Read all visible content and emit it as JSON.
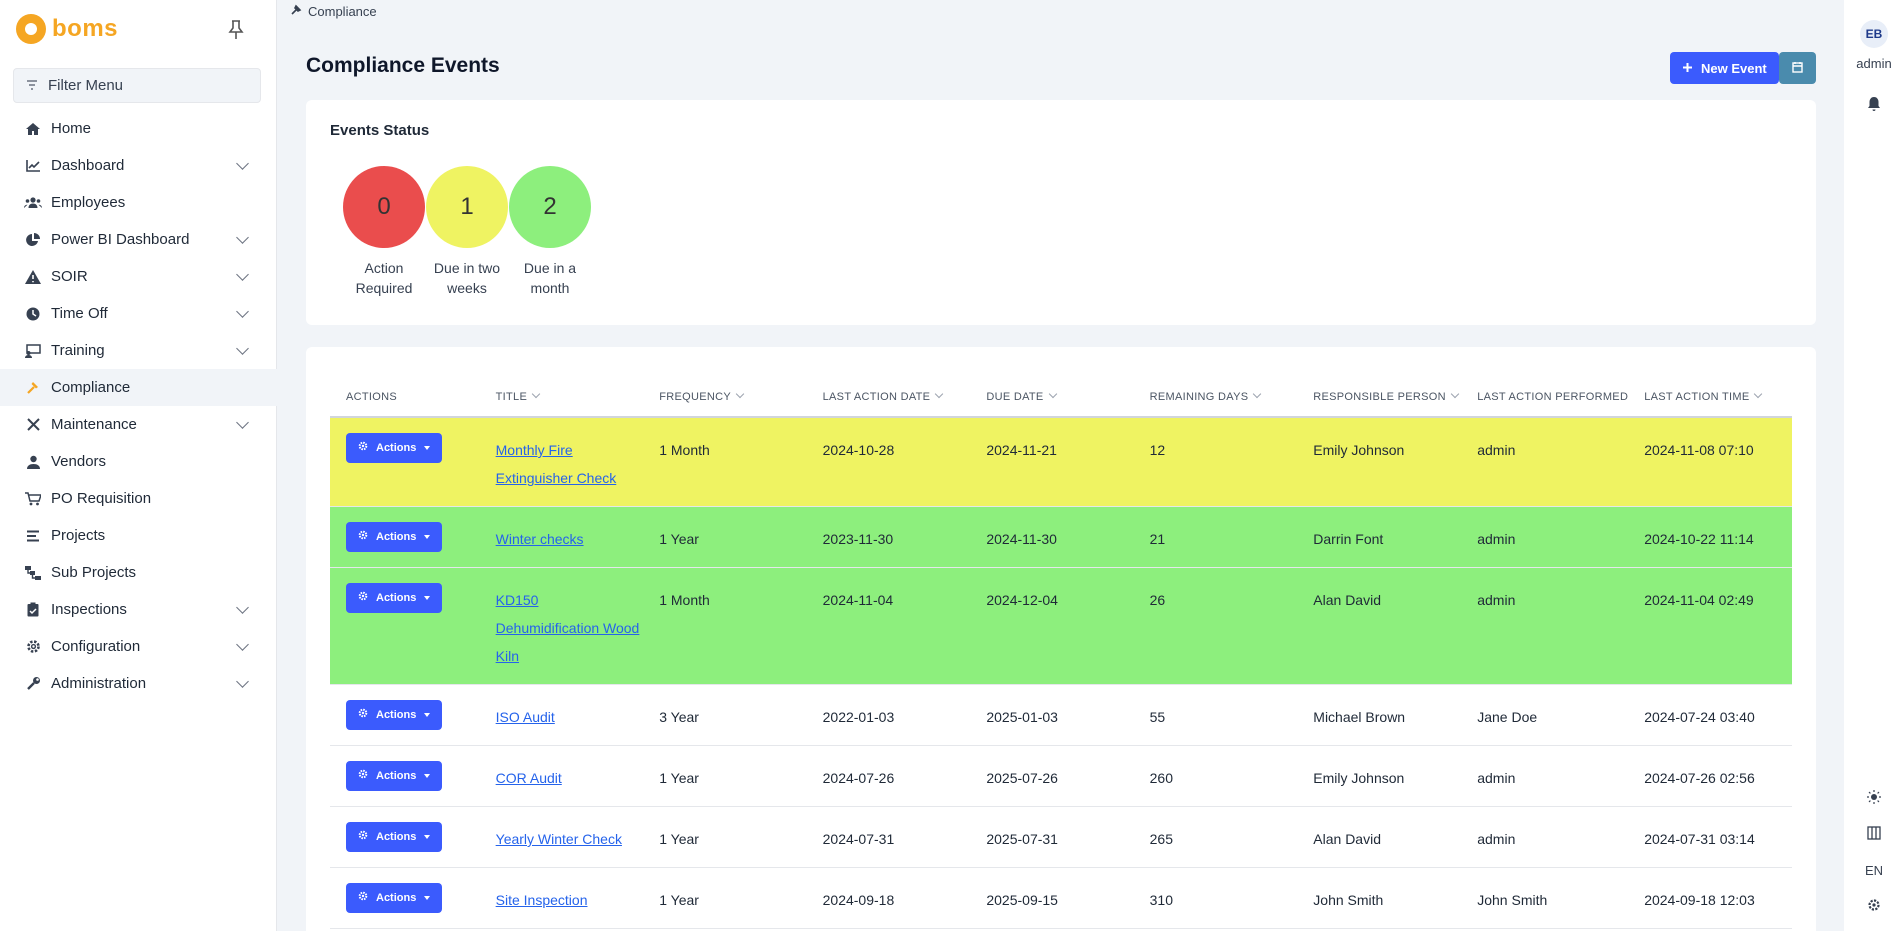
{
  "brand": {
    "name": "boms"
  },
  "sidebar": {
    "filter_label": "Filter Menu",
    "items": [
      {
        "label": "Home",
        "icon": "home-icon",
        "chevron": false
      },
      {
        "label": "Dashboard",
        "icon": "chart-line-icon",
        "chevron": true
      },
      {
        "label": "Employees",
        "icon": "users-icon",
        "chevron": false
      },
      {
        "label": "Power BI Dashboard",
        "icon": "pie-chart-icon",
        "chevron": true
      },
      {
        "label": "SOIR",
        "icon": "warning-icon",
        "chevron": true
      },
      {
        "label": "Time Off",
        "icon": "clock-icon",
        "chevron": true
      },
      {
        "label": "Training",
        "icon": "training-icon",
        "chevron": true
      },
      {
        "label": "Compliance",
        "icon": "hammer-icon",
        "chevron": false,
        "active": true
      },
      {
        "label": "Maintenance",
        "icon": "tools-icon",
        "chevron": true
      },
      {
        "label": "Vendors",
        "icon": "user-icon",
        "chevron": false
      },
      {
        "label": "PO Requisition",
        "icon": "cart-icon",
        "chevron": false
      },
      {
        "label": "Projects",
        "icon": "bars-icon",
        "chevron": false
      },
      {
        "label": "Sub Projects",
        "icon": "sitemap-icon",
        "chevron": false
      },
      {
        "label": "Inspections",
        "icon": "clipboard-check-icon",
        "chevron": true
      },
      {
        "label": "Configuration",
        "icon": "gear-icon",
        "chevron": true
      },
      {
        "label": "Administration",
        "icon": "wrench-icon",
        "chevron": true
      }
    ]
  },
  "breadcrumb": {
    "label": "Compliance"
  },
  "header": {
    "title": "Compliance Events",
    "new_event_label": "New Event"
  },
  "status": {
    "title": "Events Status",
    "items": [
      {
        "count": "0",
        "label_line1": "Action",
        "label_line2": "Required",
        "color": "#ea4d4d"
      },
      {
        "count": "1",
        "label_line1": "Due in two",
        "label_line2": "weeks",
        "color": "#eff362"
      },
      {
        "count": "2",
        "label_line1": "Due in a",
        "label_line2": "month",
        "color": "#8def7d"
      }
    ]
  },
  "table": {
    "columns": [
      "ACTIONS",
      "TITLE",
      "FREQUENCY",
      "LAST ACTION DATE",
      "DUE DATE",
      "REMAINING DAYS",
      "RESPONSIBLE PERSON",
      "LAST ACTION PERFORMED",
      "LAST ACTION TIME"
    ],
    "action_label": "Actions",
    "rows": [
      {
        "title": "Monthly Fire Extinguisher Check",
        "frequency": "1 Month",
        "last_action_date": "2024-10-28",
        "due_date": "2024-11-21",
        "remaining_days": "12",
        "responsible": "Emily Johnson",
        "performed_by": "admin",
        "last_action_time": "2024-11-08 07:10",
        "status": "yellow"
      },
      {
        "title": "Winter checks",
        "frequency": "1 Year",
        "last_action_date": "2023-11-30",
        "due_date": "2024-11-30",
        "remaining_days": "21",
        "responsible": "Darrin Font",
        "performed_by": "admin",
        "last_action_time": "2024-10-22 11:14",
        "status": "green"
      },
      {
        "title": "KD150 Dehumidification Wood Kiln",
        "frequency": "1 Month",
        "last_action_date": "2024-11-04",
        "due_date": "2024-12-04",
        "remaining_days": "26",
        "responsible": "Alan David",
        "performed_by": "admin",
        "last_action_time": "2024-11-04 02:49",
        "status": "green"
      },
      {
        "title": "ISO Audit",
        "frequency": "3 Year",
        "last_action_date": "2022-01-03",
        "due_date": "2025-01-03",
        "remaining_days": "55",
        "responsible": "Michael Brown",
        "performed_by": "Jane Doe",
        "last_action_time": "2024-07-24 03:40",
        "status": "none"
      },
      {
        "title": "COR Audit",
        "frequency": "1 Year",
        "last_action_date": "2024-07-26",
        "due_date": "2025-07-26",
        "remaining_days": "260",
        "responsible": "Emily Johnson",
        "performed_by": "admin",
        "last_action_time": "2024-07-26 02:56",
        "status": "none"
      },
      {
        "title": "Yearly Winter Check",
        "frequency": "1 Year",
        "last_action_date": "2024-07-31",
        "due_date": "2025-07-31",
        "remaining_days": "265",
        "responsible": "Alan David",
        "performed_by": "admin",
        "last_action_time": "2024-07-31 03:14",
        "status": "none"
      },
      {
        "title": "Site Inspection",
        "frequency": "1 Year",
        "last_action_date": "2024-09-18",
        "due_date": "2025-09-15",
        "remaining_days": "310",
        "responsible": "John Smith",
        "performed_by": "John Smith",
        "last_action_time": "2024-09-18 12:03",
        "status": "none"
      }
    ]
  },
  "rail": {
    "avatar_initials": "EB",
    "user": "admin",
    "language": "EN"
  }
}
